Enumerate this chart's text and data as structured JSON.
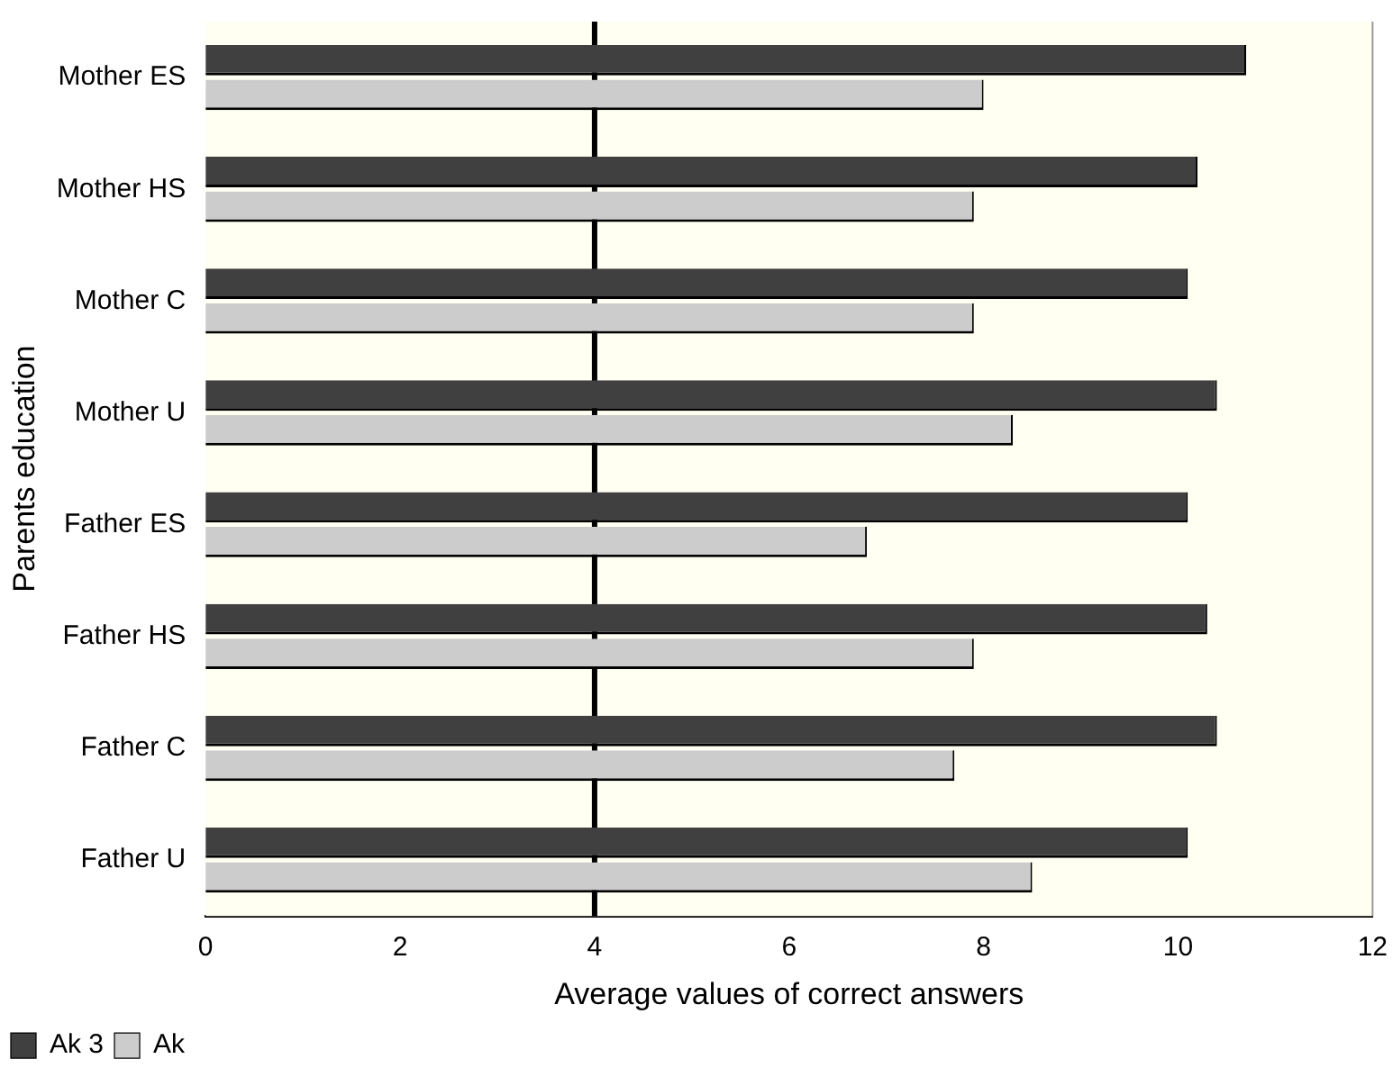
{
  "chart_data": {
    "type": "bar",
    "orientation": "horizontal",
    "categories": [
      "Mother ES",
      "Mother HS",
      "Mother C",
      "Mother U",
      "Father ES",
      "Father HS",
      "Father C",
      "Father U"
    ],
    "series": [
      {
        "name": "Ak 3",
        "color": "#404040",
        "values": [
          10.7,
          10.2,
          10.1,
          10.4,
          10.1,
          10.3,
          10.4,
          10.1
        ]
      },
      {
        "name": "Ak",
        "color": "#cccccc",
        "values": [
          8.0,
          7.9,
          7.9,
          8.3,
          6.8,
          7.9,
          7.7,
          8.5
        ]
      }
    ],
    "xlabel": "Average values of correct answers",
    "ylabel": "Parents education",
    "xlim": [
      0,
      12
    ],
    "xticks": [
      0,
      2,
      4,
      6,
      8,
      10,
      12
    ],
    "ref_lines": [
      {
        "axis": "x",
        "value": 4,
        "color": "#000000"
      }
    ],
    "grid": false,
    "legend": "bottom"
  }
}
